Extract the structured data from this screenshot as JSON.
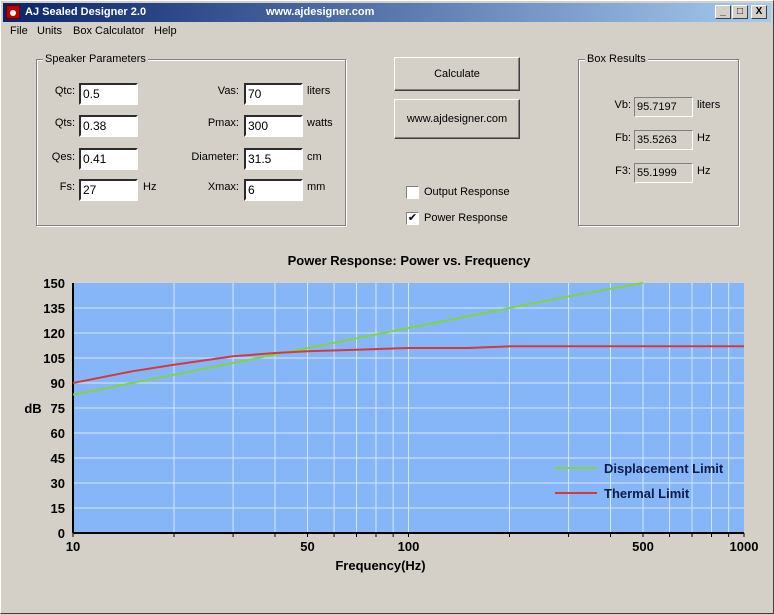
{
  "window": {
    "title": "AJ Sealed Designer 2.0",
    "url_caption": "www.ajdesigner.com",
    "minimize_glyph": "_",
    "maximize_glyph": "□",
    "close_glyph": "X"
  },
  "menu": [
    "File",
    "Units",
    "Box Calculator",
    "Help"
  ],
  "speaker_parameters": {
    "title": "Speaker Parameters",
    "qtc": {
      "label": "Qtc:",
      "value": "0.5"
    },
    "qts": {
      "label": "Qts:",
      "value": "0.38"
    },
    "qes": {
      "label": "Qes:",
      "value": "0.41"
    },
    "fs": {
      "label": "Fs:",
      "value": "27",
      "unit": "Hz"
    },
    "vas": {
      "label": "Vas:",
      "value": "70",
      "unit": "liters"
    },
    "pmax": {
      "label": "Pmax:",
      "value": "300",
      "unit": "watts"
    },
    "diameter": {
      "label": "Diameter:",
      "value": "31.5",
      "unit": "cm"
    },
    "xmax": {
      "label": "Xmax:",
      "value": "6",
      "unit": "mm"
    }
  },
  "actions": {
    "calculate": "Calculate",
    "website": "www.ajdesigner.com"
  },
  "options": {
    "output_response": {
      "label": "Output Response",
      "checked": false
    },
    "power_response": {
      "label": "Power Response",
      "checked": true
    },
    "check_glyph": "✔"
  },
  "box_results": {
    "title": "Box Results",
    "vb": {
      "label": "Vb:",
      "value": "95.7197",
      "unit": "liters"
    },
    "fb": {
      "label": "Fb:",
      "value": "35.5263",
      "unit": "Hz"
    },
    "f3": {
      "label": "F3:",
      "value": "55.1999",
      "unit": "Hz"
    }
  },
  "chart_data": {
    "type": "line",
    "title": "Power Response: Power vs. Frequency",
    "xlabel": "Frequency(Hz)",
    "ylabel": "dB",
    "x_scale": "log",
    "xlim": [
      10,
      1000
    ],
    "ylim": [
      0,
      150
    ],
    "x_ticks": [
      10,
      50,
      100,
      500,
      1000
    ],
    "y_ticks": [
      0,
      15,
      30,
      45,
      60,
      75,
      90,
      105,
      120,
      135,
      150
    ],
    "grid": true,
    "legend_position": "bottom-right",
    "plot_background": "#87b6f8",
    "series": [
      {
        "name": "Displacement Limit",
        "color": "#7fd63c",
        "x": [
          10,
          20,
          30,
          50,
          100,
          200,
          300,
          500
        ],
        "y": [
          83,
          95,
          102,
          111,
          123,
          135,
          142,
          150
        ]
      },
      {
        "name": "Thermal Limit",
        "color": "#d43a3a",
        "x": [
          10,
          15,
          20,
          30,
          40,
          50,
          70,
          100,
          150,
          200,
          500,
          1000
        ],
        "y": [
          90,
          97,
          101,
          106,
          108,
          109,
          110,
          111,
          111,
          112,
          112,
          112
        ]
      }
    ]
  }
}
